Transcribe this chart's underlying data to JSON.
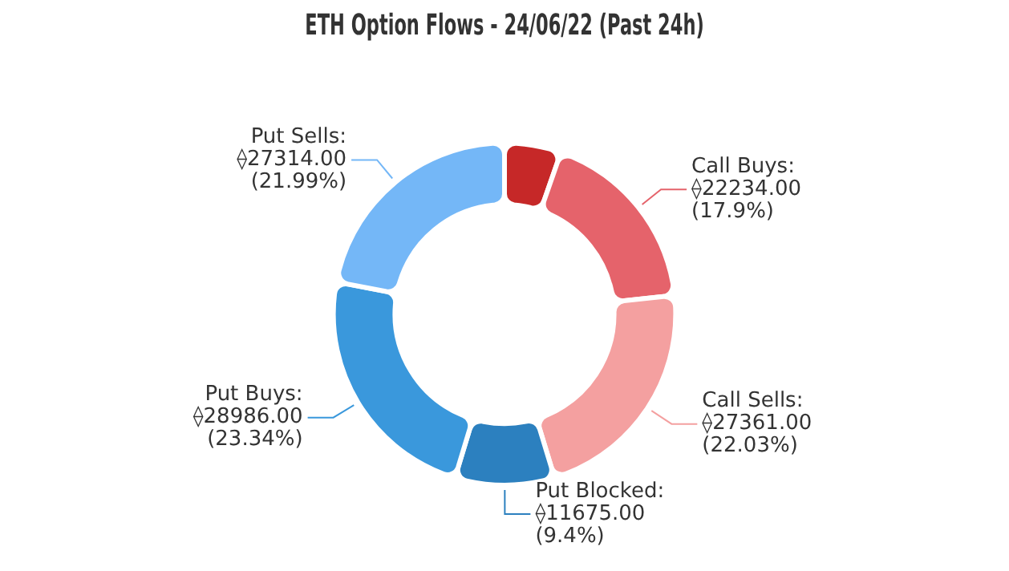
{
  "chart_data": {
    "type": "donut",
    "title": "ETH Option Flows - 24/06/22 (Past 24h)",
    "categories": [
      null,
      "Call Buys",
      "Call Sells",
      "Put Blocked",
      "Put Buys",
      "Put Sells"
    ],
    "values": [
      6642,
      22234,
      27361,
      11675,
      28986,
      27314
    ],
    "colors": [
      "#c62828",
      "#e5636b",
      "#f4a0a0",
      "#2c80bf",
      "#3a98dc",
      "#74b7f7"
    ],
    "value_labels": [
      null,
      ":\n⟠22234.00\n(17.9%)",
      ":\n⟠27361.00\n(22.03%)",
      ":\n⟠11675.00\n(9.4%)",
      ":\n⟠28986.00\n(23.34%)",
      ":\n⟠27314.00\n(21.99%)"
    ],
    "legend": false
  }
}
